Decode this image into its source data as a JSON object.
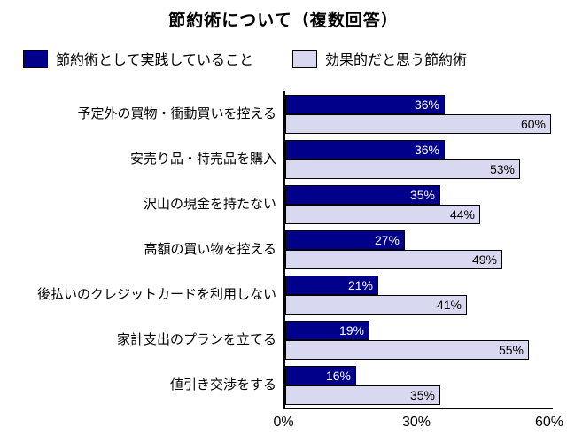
{
  "title": "節約術について（複数回答）",
  "chart_data": {
    "type": "bar",
    "orientation": "horizontal",
    "title": "節約術について（複数回答）",
    "categories": [
      "予定外の買物・衝動買いを控える",
      "安売り品・特売品を購入",
      "沢山の現金を持たない",
      "高額の買い物を控える",
      "後払いのクレジットカードを利用しない",
      "家計支出のプランを立てる",
      "値引き交渉をする"
    ],
    "series": [
      {
        "name": "節約術として実践していること",
        "color": "#00008B",
        "label_color": "#FFFFFF",
        "values": [
          36,
          36,
          35,
          27,
          21,
          19,
          16
        ]
      },
      {
        "name": "効果的だと思う節約術",
        "color": "#D8D8F0",
        "label_color": "#000000",
        "values": [
          60,
          53,
          44,
          49,
          41,
          55,
          35
        ]
      }
    ],
    "xlim": [
      0,
      60
    ],
    "x_ticks": [
      {
        "label": "0%",
        "value": 0
      },
      {
        "label": "30%",
        "value": 30
      },
      {
        "label": "60%",
        "value": 60
      }
    ],
    "value_suffix": "%",
    "grid": false,
    "legend_position": "top"
  }
}
